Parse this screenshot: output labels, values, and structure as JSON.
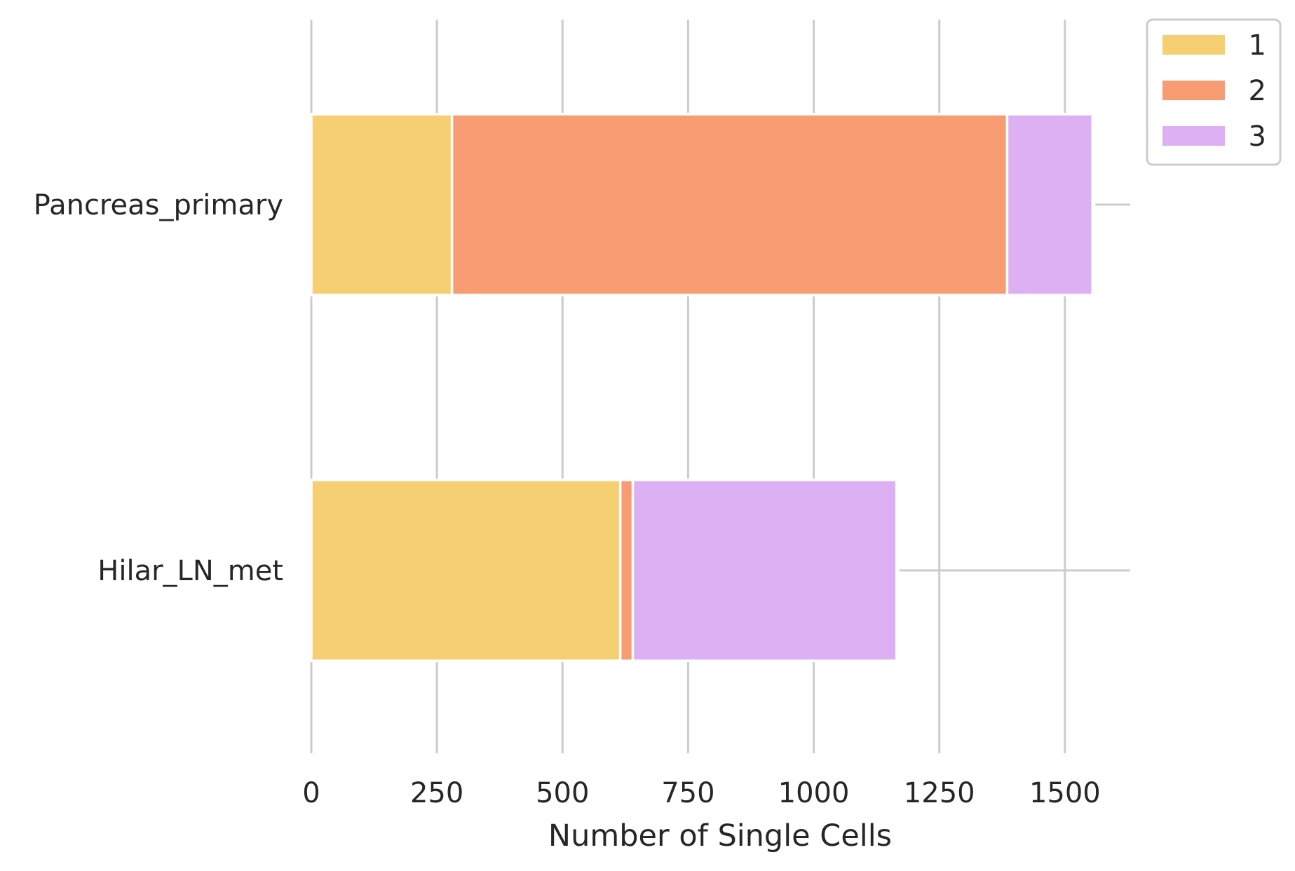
{
  "chart_data": {
    "type": "bar",
    "orientation": "horizontal",
    "stacked": true,
    "title": "",
    "xlabel": "Number of Single Cells",
    "ylabel": "",
    "categories": [
      "Pancreas_primary",
      "Hilar_LN_met"
    ],
    "series": [
      {
        "name": "1",
        "color": "#f6cf73",
        "values": [
          280,
          615
        ]
      },
      {
        "name": "2",
        "color": "#f89c74",
        "values": [
          1105,
          25
        ]
      },
      {
        "name": "3",
        "color": "#dcb0f2",
        "values": [
          170,
          525
        ]
      }
    ],
    "xlim": [
      0,
      1630
    ],
    "xticks": [
      0,
      250,
      500,
      750,
      1000,
      1250,
      1500
    ],
    "xtick_labels": [
      "0",
      "250",
      "500",
      "750",
      "1000",
      "1250",
      "1500"
    ],
    "grid": true,
    "legend": {
      "position": "top-right-outside",
      "entries": [
        "1",
        "2",
        "3"
      ]
    }
  }
}
